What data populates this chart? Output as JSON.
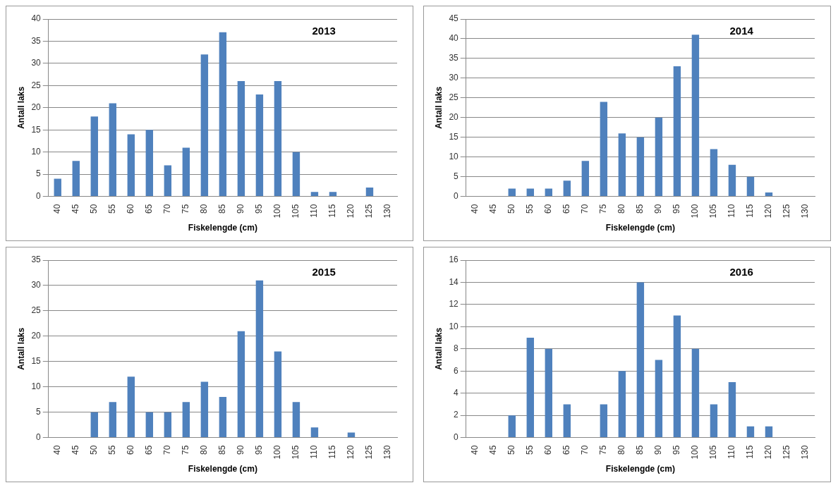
{
  "chart_data": [
    {
      "type": "bar",
      "title": "2013",
      "xlabel": "Fiskelengde (cm)",
      "ylabel": "Antall laks",
      "categories": [
        "40",
        "45",
        "50",
        "55",
        "60",
        "65",
        "70",
        "75",
        "80",
        "85",
        "90",
        "95",
        "100",
        "105",
        "110",
        "115",
        "120",
        "125",
        "130"
      ],
      "values": [
        4,
        8,
        18,
        21,
        14,
        15,
        7,
        11,
        32,
        37,
        26,
        23,
        26,
        10,
        1,
        1,
        0,
        2,
        0
      ],
      "color": "#4f81bd",
      "ylim": [
        0,
        40
      ],
      "yticks": [
        0,
        5,
        10,
        15,
        20,
        25,
        30,
        35,
        40
      ],
      "grid": "y"
    },
    {
      "type": "bar",
      "title": "2014",
      "xlabel": "Fiskelengde (cm)",
      "ylabel": "Antall laks",
      "categories": [
        "40",
        "45",
        "50",
        "55",
        "60",
        "65",
        "70",
        "75",
        "80",
        "85",
        "90",
        "95",
        "100",
        "105",
        "110",
        "115",
        "120",
        "125",
        "130"
      ],
      "values": [
        0,
        0,
        2,
        2,
        2,
        4,
        9,
        24,
        16,
        15,
        20,
        33,
        41,
        12,
        8,
        5,
        1,
        0,
        0
      ],
      "color": "#4f81bd",
      "ylim": [
        0,
        45
      ],
      "yticks": [
        0,
        5,
        10,
        15,
        20,
        25,
        30,
        35,
        40,
        45
      ],
      "grid": "y"
    },
    {
      "type": "bar",
      "title": "2015",
      "xlabel": "Fiskelengde (cm)",
      "ylabel": "Antall laks",
      "categories": [
        "40",
        "45",
        "50",
        "55",
        "60",
        "65",
        "70",
        "75",
        "80",
        "85",
        "90",
        "95",
        "100",
        "105",
        "110",
        "115",
        "120",
        "125",
        "130"
      ],
      "values": [
        0,
        0,
        5,
        7,
        12,
        5,
        5,
        7,
        11,
        8,
        21,
        31,
        17,
        7,
        2,
        0,
        1,
        0,
        0
      ],
      "color": "#4f81bd",
      "ylim": [
        0,
        35
      ],
      "yticks": [
        0,
        5,
        10,
        15,
        20,
        25,
        30,
        35
      ],
      "grid": "y"
    },
    {
      "type": "bar",
      "title": "2016",
      "xlabel": "Fiskelengde (cm)",
      "ylabel": "Antall laks",
      "categories": [
        "40",
        "45",
        "50",
        "55",
        "60",
        "65",
        "70",
        "75",
        "80",
        "85",
        "90",
        "95",
        "100",
        "105",
        "110",
        "115",
        "120",
        "125",
        "130"
      ],
      "values": [
        0,
        0,
        2,
        9,
        8,
        3,
        0,
        3,
        6,
        14,
        7,
        11,
        8,
        3,
        5,
        1,
        1,
        0,
        0
      ],
      "color": "#4f81bd",
      "ylim": [
        0,
        16
      ],
      "yticks": [
        0,
        2,
        4,
        6,
        8,
        10,
        12,
        14,
        16
      ],
      "grid": "y"
    }
  ]
}
